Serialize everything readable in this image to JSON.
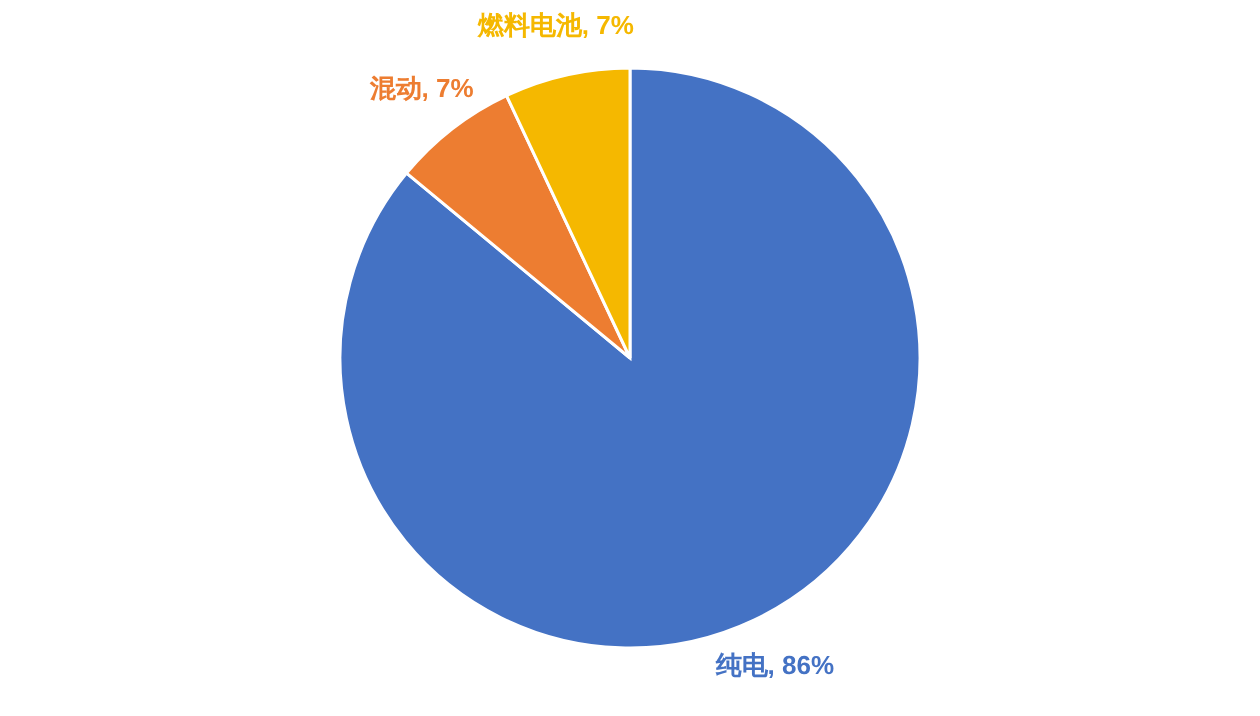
{
  "chart_data": {
    "type": "pie",
    "categories": [
      "纯电",
      "混动",
      "燃料电池"
    ],
    "values": [
      86,
      7,
      7
    ],
    "colors": [
      "#4472c4",
      "#ed7d31",
      "#f5b800"
    ],
    "value_labels": [
      "86%",
      "7%",
      "7%"
    ],
    "legend": false
  }
}
